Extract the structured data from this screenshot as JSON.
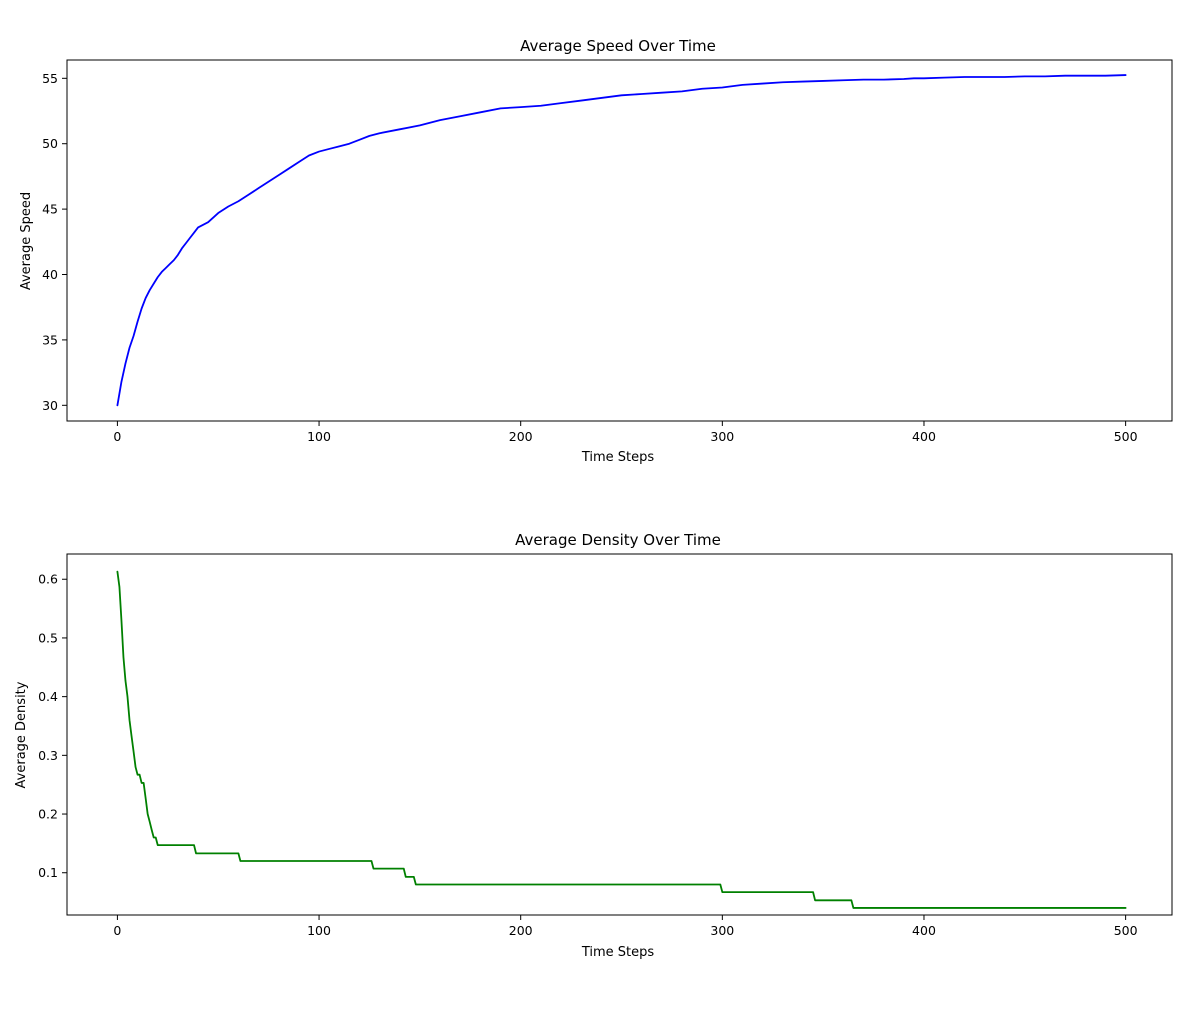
{
  "chart_data": [
    {
      "type": "line",
      "title": "Average Speed Over Time",
      "xlabel": "Time Steps",
      "ylabel": "Average Speed",
      "xlim": [
        -25,
        523
      ],
      "ylim": [
        28.8,
        56.4
      ],
      "xticks": [
        0,
        100,
        200,
        300,
        400,
        500
      ],
      "yticks": [
        30,
        35,
        40,
        45,
        50,
        55
      ],
      "grid": false,
      "color": "#0000ff",
      "x": [
        0,
        2,
        4,
        6,
        8,
        10,
        12,
        14,
        16,
        18,
        20,
        22,
        24,
        26,
        28,
        30,
        32,
        34,
        36,
        38,
        40,
        45,
        50,
        55,
        60,
        65,
        70,
        75,
        80,
        85,
        90,
        95,
        100,
        105,
        110,
        115,
        120,
        125,
        130,
        140,
        150,
        160,
        170,
        180,
        190,
        200,
        210,
        220,
        230,
        240,
        250,
        260,
        270,
        280,
        290,
        300,
        310,
        320,
        330,
        340,
        350,
        360,
        370,
        380,
        390,
        395,
        400,
        410,
        420,
        430,
        440,
        450,
        460,
        470,
        480,
        490,
        500
      ],
      "y": [
        30.0,
        31.8,
        33.2,
        34.4,
        35.3,
        36.4,
        37.4,
        38.2,
        38.8,
        39.3,
        39.8,
        40.2,
        40.5,
        40.8,
        41.1,
        41.5,
        42.0,
        42.4,
        42.8,
        43.2,
        43.6,
        44.0,
        44.7,
        45.2,
        45.6,
        46.1,
        46.6,
        47.1,
        47.6,
        48.1,
        48.6,
        49.1,
        49.4,
        49.6,
        49.8,
        50.0,
        50.3,
        50.6,
        50.8,
        51.1,
        51.4,
        51.8,
        52.1,
        52.4,
        52.7,
        52.8,
        52.9,
        53.1,
        53.3,
        53.5,
        53.7,
        53.8,
        53.9,
        54.0,
        54.2,
        54.3,
        54.5,
        54.6,
        54.7,
        54.75,
        54.8,
        54.85,
        54.9,
        54.9,
        54.95,
        55.0,
        55.0,
        55.05,
        55.1,
        55.1,
        55.1,
        55.15,
        55.15,
        55.2,
        55.2,
        55.2,
        55.25
      ]
    },
    {
      "type": "line",
      "title": "Average Density Over Time",
      "xlabel": "Time Steps",
      "ylabel": "Average Density",
      "xlim": [
        -25,
        523
      ],
      "ylim": [
        0.028,
        0.643
      ],
      "xticks": [
        0,
        100,
        200,
        300,
        400,
        500
      ],
      "yticks": [
        0.1,
        0.2,
        0.3,
        0.4,
        0.5,
        0.6
      ],
      "grid": false,
      "color": "#008000",
      "x": [
        0,
        1,
        2,
        3,
        4,
        5,
        6,
        7,
        8,
        9,
        10,
        11,
        12,
        13,
        14,
        15,
        16,
        17,
        18,
        19,
        20,
        38,
        39,
        60,
        61,
        126,
        127,
        142,
        143,
        147,
        148,
        299,
        300,
        345,
        346,
        364,
        365,
        500
      ],
      "y": [
        0.613,
        0.587,
        0.53,
        0.467,
        0.427,
        0.4,
        0.36,
        0.333,
        0.307,
        0.28,
        0.267,
        0.267,
        0.253,
        0.253,
        0.227,
        0.2,
        0.187,
        0.173,
        0.16,
        0.16,
        0.147,
        0.147,
        0.133,
        0.133,
        0.12,
        0.12,
        0.107,
        0.107,
        0.093,
        0.093,
        0.08,
        0.08,
        0.067,
        0.067,
        0.053,
        0.053,
        0.04,
        0.04
      ]
    }
  ]
}
